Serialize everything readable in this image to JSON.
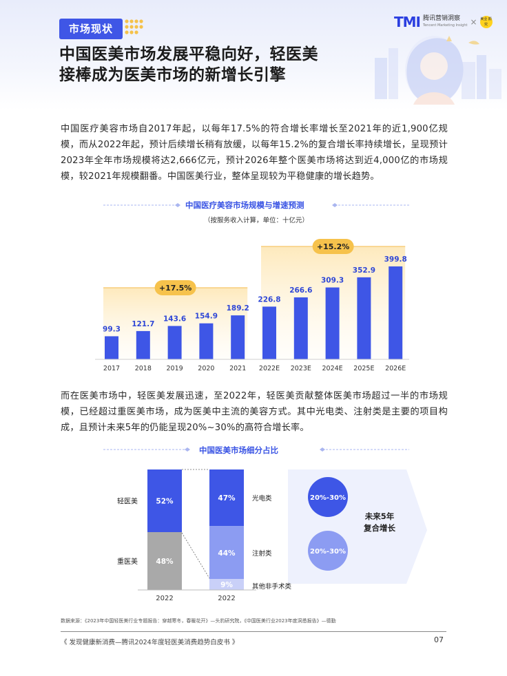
{
  "header": {
    "section_tag": "市场现状",
    "logo_brand": "TMI",
    "logo_name": "腾讯营销洞察",
    "logo_sub": "Tencent Marketing Insight",
    "logo_x": "×",
    "partner_logo_text": "美业 颜究",
    "title_line1": "中国医美市场发展平稳向好，轻医美",
    "title_line2": "接棒成为医美市场的新增长引擎"
  },
  "body": {
    "paragraph1": "中国医疗美容市场自2017年起，以每年17.5%的符合增长率增长至2021年的近1,900亿规模，而从2022年起，预计后续增长稍有放缓，以每年15.2%的复合增长率持续增长，呈现预计2023年全年市场规模将达2,666亿元，预计2026年整个医美市场将达到近4,000亿的市场规模，较2021年规模翻番。中国医美行业，整体呈现较为平稳健康的增长趋势。",
    "paragraph2": "而在医美市场中，轻医美发展迅速，至2022年，轻医美贡献整体医美市场超过一半的市场规模，已经超过重医美市场，成为医美中主流的美容方式。其中光电类、注射类是主要的项目构成，且预计未来5年的仍能呈现20%~30%的高符合增长率。"
  },
  "chart_data": [
    {
      "type": "bar",
      "title": "中国医疗美容市场规模与增速预测",
      "subtitle": "（按服务收入计算，单位：十亿元）",
      "categories": [
        "2017",
        "2018",
        "2019",
        "2020",
        "2021",
        "2022E",
        "2023E",
        "2024E",
        "2025E",
        "2026E"
      ],
      "values": [
        99.3,
        121.7,
        143.6,
        154.9,
        189.2,
        226.8,
        266.6,
        309.3,
        352.9,
        399.8
      ],
      "value_labels": [
        "99.3",
        "121.7",
        "143.6",
        "154.9",
        "189.2",
        "226.8",
        "266.6",
        "309.3",
        "352.9",
        "399.8"
      ],
      "annotations": [
        {
          "label": "+17.5%",
          "from": "2017",
          "to": "2021"
        },
        {
          "label": "+15.2%",
          "from": "2022E",
          "to": "2026E"
        }
      ],
      "bar_color": "#3e56e6",
      "ylim": [
        0,
        420
      ],
      "grid": false
    },
    {
      "type": "bar",
      "title": "中国医美市场细分占比",
      "stacked": true,
      "bars": [
        {
          "category": "2022",
          "segments": [
            {
              "name": "轻医美",
              "label": "52%",
              "value": 52,
              "color": "#3e56e6"
            },
            {
              "name": "重医美",
              "label": "48%",
              "value": 48,
              "color": "#a9a9a9"
            }
          ]
        },
        {
          "category": "2022",
          "segments": [
            {
              "name": "光电类",
              "label": "47%",
              "value": 47,
              "color": "#3e56e6"
            },
            {
              "name": "注射类",
              "label": "44%",
              "value": 44,
              "color": "#8c9cf2"
            },
            {
              "name": "其他非手术类",
              "label": "9%",
              "value": 9,
              "color": "#c9d0f8"
            }
          ]
        }
      ],
      "forecast": {
        "label_line1": "未来5年",
        "label_line2": "复合增长",
        "bubbles": [
          {
            "for": "光电类",
            "label": "20%-30%",
            "color": "#3e56e6"
          },
          {
            "for": "注射类",
            "label": "20%-30%",
            "color": "#8c9cf2"
          }
        ]
      }
    }
  ],
  "footer": {
    "source": "数据来源：《2023年中国轻医美行业专题报告：穿越寒冬，春暖花开》—头豹研究院，《中国医美行业2023年度洞悉报告》—德勤",
    "report_name": "《 发现健康新消费—腾讯2024年度轻医美消费趋势白皮书 》",
    "page_number": "07"
  }
}
